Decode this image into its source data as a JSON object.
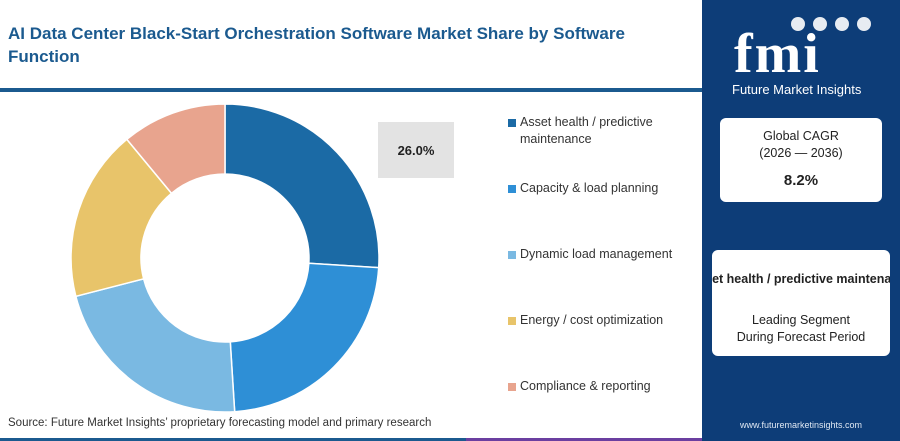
{
  "title": "AI Data Center Black-Start Orchestration Software Market Share by Software Function",
  "chart_data": {
    "type": "donut",
    "title": "AI Data Center Black-Start Orchestration Software Market Share by Software Function",
    "categories": [
      "Asset health / predictive maintenance",
      "Capacity & load planning",
      "Dynamic load management",
      "Energy / cost optimization",
      "Compliance & reporting"
    ],
    "values": [
      26.0,
      23.0,
      22.0,
      18.0,
      11.0
    ],
    "colors": [
      "#1b6aa5",
      "#2e8fd6",
      "#7ab9e2",
      "#e8c46a",
      "#e8a48e"
    ],
    "data_labels": [
      {
        "category": "Asset health / predictive maintenance",
        "text": "26.0%"
      }
    ],
    "legend": "right"
  },
  "legend_items": [
    {
      "label": "Asset health / predictive maintenance",
      "color": "#1b6aa5"
    },
    {
      "label": "Capacity & load planning",
      "color": "#2e8fd6"
    },
    {
      "label": "Dynamic load management",
      "color": "#7ab9e2"
    },
    {
      "label": "Energy / cost optimization",
      "color": "#e8c46a"
    },
    {
      "label": "Compliance & reporting",
      "color": "#e8a48e"
    }
  ],
  "source": "Source: Future Market Insights’ proprietary forecasting model and primary research",
  "sidebar": {
    "logo_text": "fmi",
    "brand": "Future Market Insights",
    "cagr_label_line1": "Global CAGR",
    "cagr_label_line2": "(2026 — 2036)",
    "cagr_value": "8.2%",
    "segment_name": "Asset health / predictive maintenance",
    "segment_label_line1": "Leading Segment",
    "segment_label_line2": "During Forecast Period",
    "website": "www.futuremarketinsights.com"
  },
  "colors": {
    "brand_blue": "#0d3d78",
    "title_blue": "#1b5a8f",
    "bottom_bar": [
      "#1b5a8f",
      "#e07b2a",
      "#6b3fa0",
      "#2e8fd6"
    ]
  }
}
